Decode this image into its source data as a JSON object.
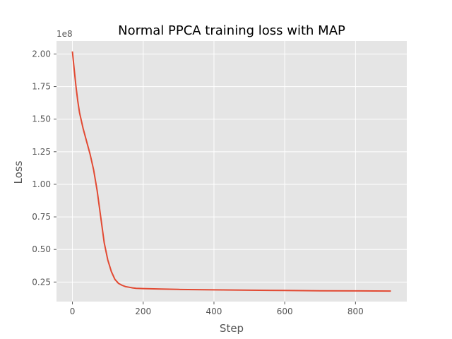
{
  "chart_data": {
    "type": "line",
    "title": "Normal PPCA training loss with MAP",
    "xlabel": "Step",
    "ylabel": "Loss",
    "y_offset_text": "1e8",
    "xlim": [
      -45,
      945
    ],
    "ylim": [
      0.1,
      2.1
    ],
    "x_ticks": [
      0,
      200,
      400,
      600,
      800
    ],
    "y_ticks": [
      0.25,
      0.5,
      0.75,
      1.0,
      1.25,
      1.5,
      1.75,
      2.0
    ],
    "grid": true,
    "colors": {
      "background": "#e5e5e5",
      "grid": "#ffffff",
      "line": "#e24a33"
    },
    "series": [
      {
        "x": [
          0,
          5,
          10,
          15,
          20,
          30,
          40,
          50,
          60,
          70,
          80,
          90,
          100,
          110,
          120,
          130,
          140,
          150,
          160,
          170,
          180,
          200,
          220,
          250,
          300,
          400,
          500,
          600,
          700,
          800,
          900
        ],
        "values": [
          2.02,
          1.88,
          1.75,
          1.64,
          1.55,
          1.43,
          1.33,
          1.23,
          1.11,
          0.95,
          0.75,
          0.55,
          0.42,
          0.33,
          0.27,
          0.24,
          0.225,
          0.215,
          0.21,
          0.205,
          0.202,
          0.2,
          0.198,
          0.196,
          0.193,
          0.19,
          0.187,
          0.185,
          0.183,
          0.182,
          0.181
        ]
      }
    ]
  }
}
